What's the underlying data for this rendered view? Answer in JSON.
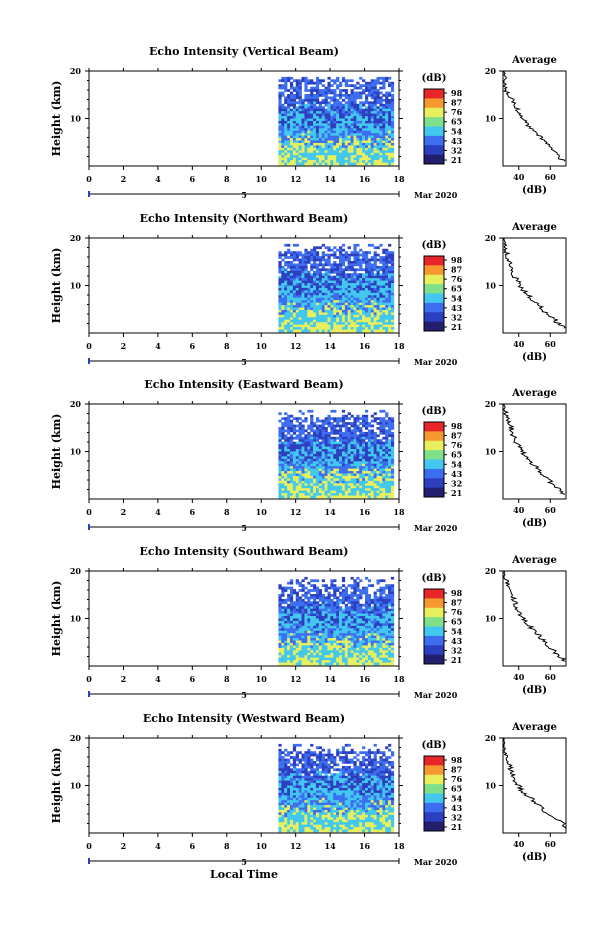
{
  "common": {
    "x_ticks": [
      "0",
      "2",
      "4",
      "6",
      "8",
      "10",
      "12",
      "14",
      "16",
      "18"
    ],
    "x_range": [
      0,
      18
    ],
    "y_ticks": [
      "20",
      "10"
    ],
    "y_label": "Height (km)",
    "date_marker": "5",
    "month_label": "Mar 2020",
    "x_label": "Local Time",
    "colorbar_unit": "(dB)",
    "colorbar_ticks": [
      "98",
      "87",
      "76",
      "65",
      "54",
      "43",
      "32",
      "21"
    ],
    "avg_title": "Average",
    "avg_x_ticks": [
      "40",
      "60"
    ],
    "avg_x_label": "(dB)",
    "avg_y_ticks": [
      "20",
      "10"
    ],
    "colors": {
      "white": "#ffffff",
      "blue_dark": "#2b3fbf",
      "blue": "#3d6ef0",
      "cyan": "#42c8ee",
      "yellow": "#e8ef5c",
      "orange": "#f59830",
      "red": "#e8262a"
    }
  },
  "chart_data": [
    {
      "type": "heatmap",
      "title": "Echo Intensity (Vertical Beam)",
      "data_start_hour": 11,
      "data_end_hour": 18,
      "height_range_km": [
        0,
        20
      ],
      "avg_profile": {
        "heights_km": [
          1,
          2,
          3,
          4,
          5,
          6,
          7,
          8,
          9,
          10,
          11,
          12,
          13,
          14,
          15,
          16,
          17,
          18,
          19,
          20
        ],
        "dB": [
          68,
          66,
          62,
          60,
          57,
          54,
          51,
          48,
          45,
          43,
          41,
          39,
          38,
          36,
          34,
          31,
          32,
          30,
          31,
          30
        ]
      }
    },
    {
      "type": "heatmap",
      "title": "Echo Intensity (Northward Beam)",
      "data_start_hour": 11,
      "data_end_hour": 18,
      "height_range_km": [
        0,
        20
      ],
      "avg_profile": {
        "heights_km": [
          1,
          2,
          3,
          4,
          5,
          6,
          7,
          8,
          9,
          10,
          11,
          12,
          13,
          14,
          15,
          16,
          17,
          18,
          19,
          20
        ],
        "dB": [
          70,
          65,
          62,
          58,
          55,
          52,
          49,
          46,
          43,
          41,
          39,
          37,
          36,
          35,
          34,
          33,
          32,
          31,
          30,
          30
        ]
      }
    },
    {
      "type": "heatmap",
      "title": "Echo Intensity (Eastward Beam)",
      "data_start_hour": 11,
      "data_end_hour": 18,
      "height_range_km": [
        0,
        20
      ],
      "avg_profile": {
        "heights_km": [
          1,
          2,
          3,
          4,
          5,
          6,
          7,
          8,
          9,
          10,
          11,
          12,
          13,
          14,
          15,
          16,
          17,
          18,
          19,
          20
        ],
        "dB": [
          69,
          66,
          62,
          59,
          56,
          53,
          50,
          47,
          44,
          42,
          40,
          38,
          37,
          36,
          35,
          34,
          33,
          32,
          30,
          29
        ]
      }
    },
    {
      "type": "heatmap",
      "title": "Echo Intensity (Southward Beam)",
      "data_start_hour": 11,
      "data_end_hour": 18,
      "height_range_km": [
        0,
        20
      ],
      "avg_profile": {
        "heights_km": [
          1,
          2,
          3,
          4,
          5,
          6,
          7,
          8,
          9,
          10,
          11,
          12,
          13,
          14,
          15,
          16,
          17,
          18,
          19,
          20
        ],
        "dB": [
          70,
          66,
          63,
          60,
          57,
          54,
          51,
          48,
          45,
          43,
          41,
          39,
          38,
          37,
          36,
          35,
          33,
          32,
          30,
          29
        ]
      }
    },
    {
      "type": "heatmap",
      "title": "Echo Intensity (Westward Beam)",
      "data_start_hour": 11,
      "data_end_hour": 18,
      "height_range_km": [
        0,
        20
      ],
      "avg_profile": {
        "heights_km": [
          1,
          2,
          3,
          4,
          5,
          6,
          7,
          8,
          9,
          10,
          11,
          12,
          13,
          14,
          15,
          16,
          17,
          18,
          19,
          20
        ],
        "dB": [
          70,
          68,
          63,
          58,
          55,
          52,
          49,
          45,
          42,
          40,
          38,
          37,
          35,
          34,
          33,
          32,
          31,
          30,
          30,
          29
        ]
      }
    }
  ]
}
